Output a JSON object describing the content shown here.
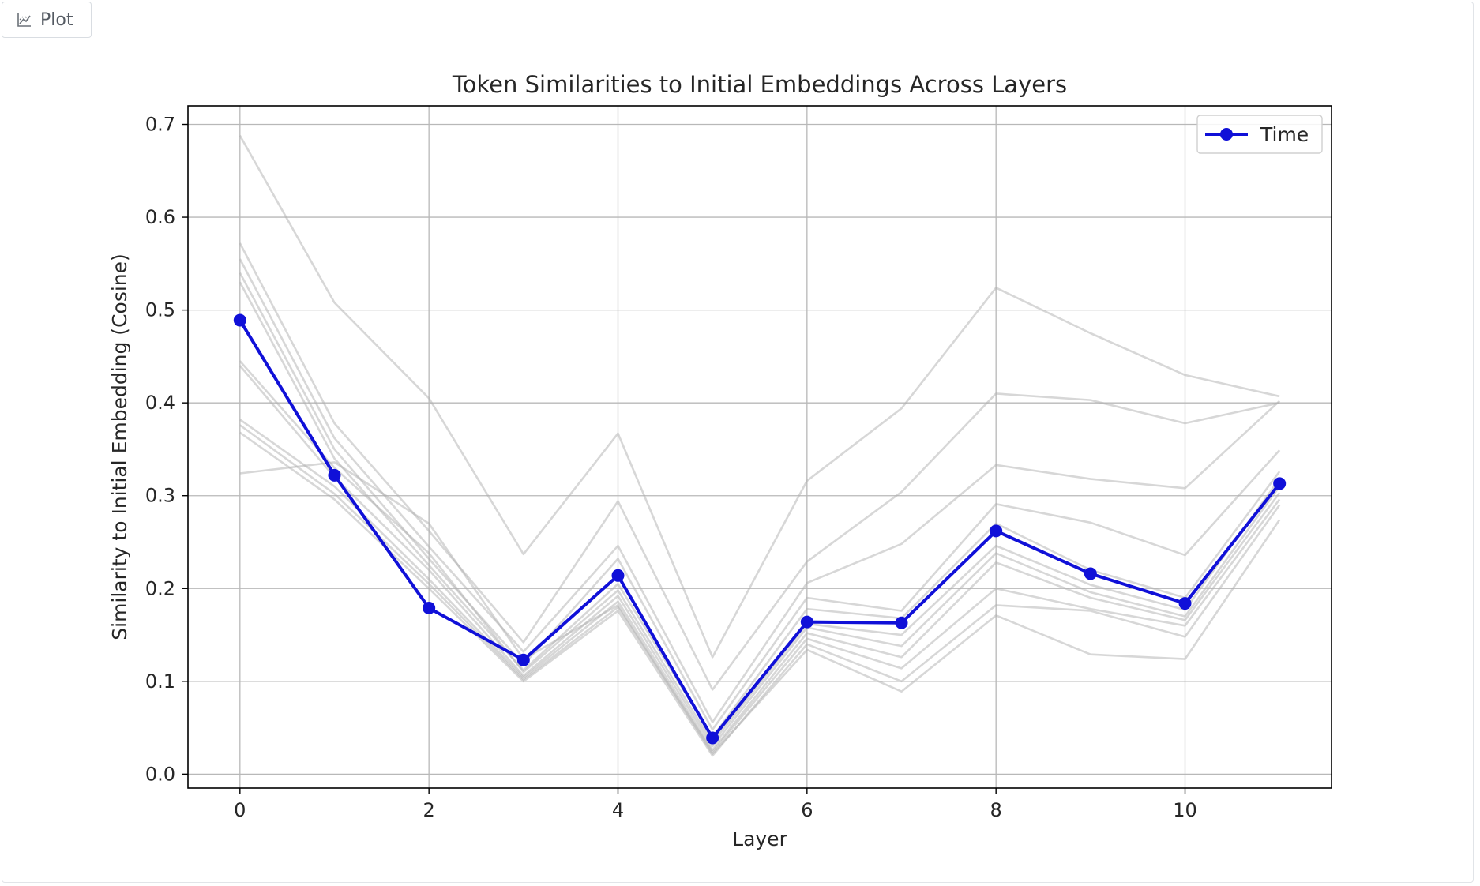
{
  "tab": {
    "label": "Plot",
    "icon": "chart-icon"
  },
  "chart_data": {
    "type": "line",
    "title": "Token Similarities to Initial Embeddings Across Layers",
    "xlabel": "Layer",
    "ylabel": "Similarity to Initial Embedding (Cosine)",
    "xlim": [
      -0.55,
      11.55
    ],
    "ylim": [
      -0.015,
      0.72
    ],
    "xticks": [
      0,
      2,
      4,
      6,
      8,
      10
    ],
    "xtick_labels": [
      "0",
      "2",
      "4",
      "6",
      "8",
      "10"
    ],
    "yticks": [
      0.0,
      0.1,
      0.2,
      0.3,
      0.4,
      0.5,
      0.6,
      0.7
    ],
    "ytick_labels": [
      "0.0",
      "0.1",
      "0.2",
      "0.3",
      "0.4",
      "0.5",
      "0.6",
      "0.7"
    ],
    "grid": true,
    "legend_position": "top-right",
    "x": [
      0,
      1,
      2,
      3,
      4,
      5,
      6,
      7,
      8,
      9,
      10,
      11
    ],
    "highlight_series": {
      "name": "Time",
      "color": "#1010d8",
      "values": [
        0.489,
        0.322,
        0.179,
        0.123,
        0.214,
        0.039,
        0.164,
        0.163,
        0.262,
        0.216,
        0.184,
        0.313
      ]
    },
    "background_series_color": "#b0b0b0",
    "background_series": [
      {
        "values": [
          0.688,
          0.508,
          0.405,
          0.237,
          0.367,
          0.126,
          0.316,
          0.394,
          0.524,
          0.475,
          0.43,
          0.407
        ]
      },
      {
        "values": [
          0.572,
          0.378,
          0.262,
          0.142,
          0.294,
          0.091,
          0.229,
          0.304,
          0.41,
          0.403,
          0.378,
          0.4
        ]
      },
      {
        "values": [
          0.555,
          0.362,
          0.245,
          0.132,
          0.246,
          0.056,
          0.206,
          0.248,
          0.333,
          0.318,
          0.308,
          0.402
        ]
      },
      {
        "values": [
          0.54,
          0.35,
          0.232,
          0.118,
          0.232,
          0.048,
          0.19,
          0.176,
          0.291,
          0.271,
          0.236,
          0.349
        ]
      },
      {
        "values": [
          0.53,
          0.34,
          0.225,
          0.112,
          0.205,
          0.04,
          0.178,
          0.168,
          0.27,
          0.22,
          0.19,
          0.326
        ]
      },
      {
        "values": [
          0.445,
          0.33,
          0.238,
          0.11,
          0.198,
          0.034,
          0.162,
          0.15,
          0.246,
          0.204,
          0.177,
          0.318
        ]
      },
      {
        "values": [
          0.44,
          0.32,
          0.22,
          0.106,
          0.192,
          0.03,
          0.158,
          0.138,
          0.238,
          0.196,
          0.17,
          0.31
        ]
      },
      {
        "values": [
          0.382,
          0.31,
          0.21,
          0.104,
          0.186,
          0.026,
          0.152,
          0.126,
          0.228,
          0.19,
          0.166,
          0.303
        ]
      },
      {
        "values": [
          0.376,
          0.302,
          0.205,
          0.102,
          0.18,
          0.024,
          0.146,
          0.114,
          0.2,
          0.178,
          0.16,
          0.296
        ]
      },
      {
        "values": [
          0.368,
          0.296,
          0.2,
          0.1,
          0.176,
          0.02,
          0.14,
          0.1,
          0.182,
          0.176,
          0.148,
          0.29
        ]
      },
      {
        "values": [
          0.324,
          0.336,
          0.27,
          0.124,
          0.182,
          0.022,
          0.134,
          0.089,
          0.171,
          0.129,
          0.124,
          0.274
        ]
      }
    ]
  }
}
